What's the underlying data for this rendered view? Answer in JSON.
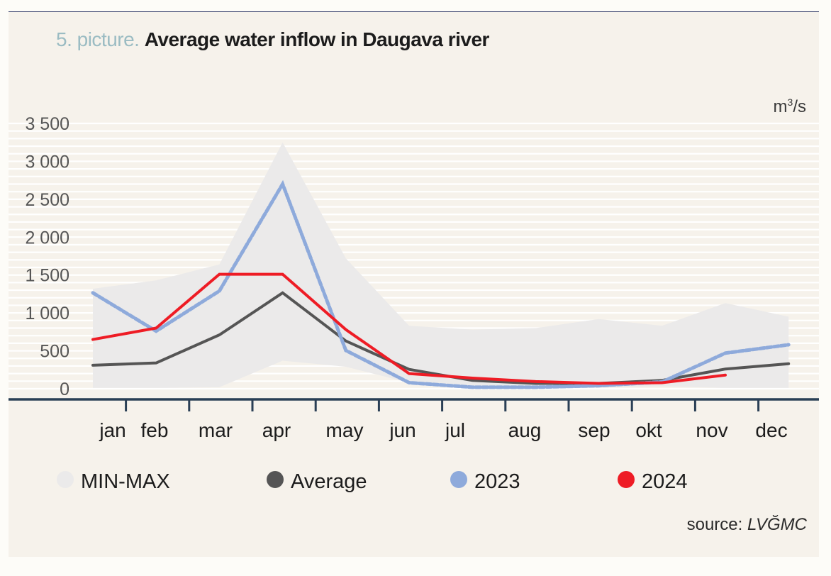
{
  "title": {
    "prefix": "5. picture.",
    "main": "Average water inflow in Daugava river"
  },
  "unit": {
    "base": "m",
    "exp": "3",
    "rest": "/s"
  },
  "source": {
    "label": "source:",
    "org": "LVĞMC"
  },
  "colors": {
    "minmax": "#ebeaea",
    "average": "#555555",
    "y2023": "#8eaadb",
    "y2024": "#ee1c25",
    "axis": "#2a3f55",
    "grid": "#ffffff"
  },
  "chart_data": {
    "type": "line",
    "title": "Average water inflow in Daugava river",
    "xlabel": "",
    "ylabel": "m3/s",
    "ylim": [
      0,
      3500
    ],
    "yticks": [
      0,
      500,
      1000,
      1500,
      2000,
      2500,
      3000,
      3500
    ],
    "ytick_labels": [
      "0",
      "500",
      "1 000",
      "1 500",
      "2 000",
      "2 500",
      "3 000",
      "3 500"
    ],
    "grid": true,
    "legend_position": "bottom",
    "categories": [
      "jan",
      "feb",
      "mar",
      "apr",
      "may",
      "jun",
      "jul",
      "aug",
      "sep",
      "okt",
      "nov",
      "dec"
    ],
    "band": {
      "name": "MIN-MAX",
      "min": [
        10,
        10,
        20,
        370,
        290,
        80,
        20,
        10,
        20,
        30,
        10,
        10
      ],
      "max": [
        1320,
        1430,
        1640,
        3250,
        1720,
        830,
        780,
        800,
        920,
        830,
        1130,
        950
      ]
    },
    "series": [
      {
        "name": "Average",
        "key": "average",
        "style": "solid",
        "values": [
          310,
          340,
          710,
          1265,
          630,
          255,
          110,
          70,
          70,
          110,
          260,
          330
        ]
      },
      {
        "name": "2023",
        "key": "y2023",
        "style": "dashed",
        "values": [
          1265,
          760,
          1290,
          2700,
          505,
          80,
          20,
          20,
          40,
          90,
          470,
          580
        ]
      },
      {
        "name": "2024",
        "key": "y2024",
        "style": "solid",
        "values": [
          650,
          800,
          1510,
          1510,
          780,
          200,
          140,
          95,
          70,
          80,
          180,
          null
        ]
      }
    ]
  },
  "legend": [
    {
      "label": "MIN-MAX",
      "key": "minmax"
    },
    {
      "label": "Average",
      "key": "average"
    },
    {
      "label": "2023",
      "key": "y2023"
    },
    {
      "label": "2024",
      "key": "y2024"
    }
  ]
}
